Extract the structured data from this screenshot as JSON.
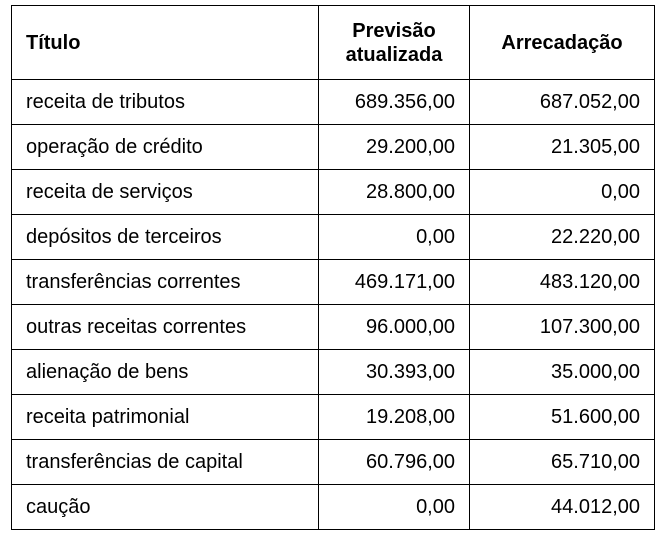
{
  "table": {
    "headers": {
      "title": "Título",
      "prevision": "Previsão atualizada",
      "collected": "Arrecadação"
    },
    "rows": [
      {
        "title": "receita de tributos",
        "prevision": "689.356,00",
        "collected": "687.052,00"
      },
      {
        "title": "operação de crédito",
        "prevision": "29.200,00",
        "collected": "21.305,00"
      },
      {
        "title": "receita de serviços",
        "prevision": "28.800,00",
        "collected": "0,00"
      },
      {
        "title": "depósitos de terceiros",
        "prevision": "0,00",
        "collected": "22.220,00"
      },
      {
        "title": "transferências correntes",
        "prevision": "469.171,00",
        "collected": "483.120,00"
      },
      {
        "title": "outras receitas correntes",
        "prevision": "96.000,00",
        "collected": "107.300,00"
      },
      {
        "title": "alienação de bens",
        "prevision": "30.393,00",
        "collected": "35.000,00"
      },
      {
        "title": "receita patrimonial",
        "prevision": "19.208,00",
        "collected": "51.600,00"
      },
      {
        "title": "transferências de capital",
        "prevision": "60.796,00",
        "collected": "65.710,00"
      },
      {
        "title": "caução",
        "prevision": "0,00",
        "collected": "44.012,00"
      }
    ]
  }
}
